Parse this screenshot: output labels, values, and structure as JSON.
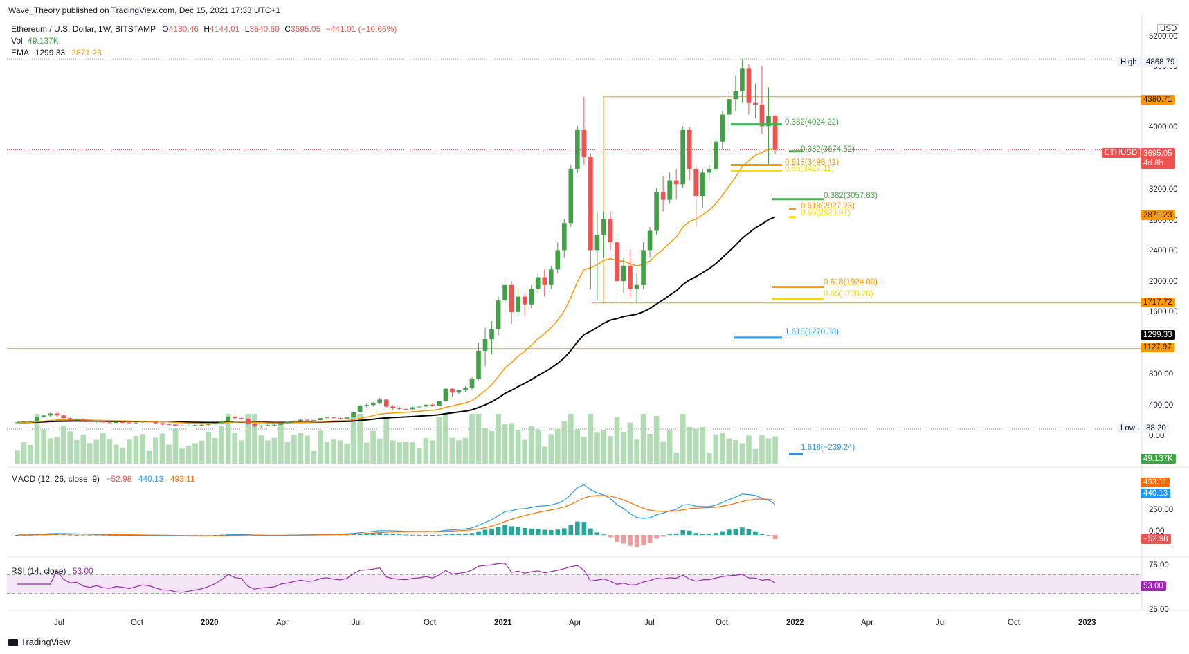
{
  "header": {
    "publisher_text": "Wave_Theory published on TradingView.com, Dec 15, 2021 17:33 UTC+1"
  },
  "legend": {
    "symbol": "Ethereum / U.S. Dollar, 1W, BITSTAMP",
    "o_label": "O",
    "o_value": "4130.46",
    "h_label": "H",
    "h_value": "4144.01",
    "l_label": "L",
    "l_value": "3640.60",
    "c_label": "C",
    "c_value": "3695.05",
    "change": "−441.01 (−10.66%)",
    "vol_label": "Vol",
    "vol_value": "49.137K",
    "ema_label": "EMA",
    "ema1_value": "1299.33",
    "ema2_value": "2871.23",
    "macd_label": "MACD (12, 26, close, 9)",
    "macd_hist": "−52.98",
    "macd_line": "440.13",
    "macd_signal": "493.11",
    "rsi_label": "RSI (14, close)",
    "rsi_value": "53.00"
  },
  "price_axis": {
    "currency": "USD",
    "ticks": [
      "5200.00",
      "4800.00",
      "4000.00",
      "3200.00",
      "2800.00",
      "2400.00",
      "2000.00",
      "1600.00",
      "800.00",
      "400.00",
      "0.00"
    ],
    "high_label": "High",
    "high_value": "4868.79",
    "low_label": "Low",
    "low_value": "88.20",
    "badge_4380": "4380.71",
    "eth_symbol": "ETHUSD",
    "eth_price": "3695.05",
    "eth_countdown": "4d 8h",
    "badge_2871": "2871.23",
    "badge_1717": "1717.72",
    "badge_1299": "1299.33",
    "badge_1127": "1127.97",
    "badge_vol": "49.137K"
  },
  "macd_axis": {
    "ticks": [
      "250.00",
      "0.00"
    ],
    "badge_signal": "493.11",
    "badge_macd": "440.13",
    "badge_hist": "−52.98"
  },
  "rsi_axis": {
    "ticks": [
      "75.00",
      "25.00"
    ],
    "badge_rsi": "53.00"
  },
  "time_axis": {
    "labels": [
      "Jul",
      "Oct",
      "2020",
      "Apr",
      "Jul",
      "Oct",
      "2021",
      "Apr",
      "Jul",
      "Oct",
      "2022",
      "Apr",
      "Jul",
      "Oct",
      "2023"
    ]
  },
  "fib_labels": {
    "f1": "0.382(4024.22)",
    "f2": "0.382(3674.52)",
    "f3": "0.618(3498.41)",
    "f4": "0.65(3427.11)",
    "f5": "0.382(3057.83)",
    "f6": "0.618(2927.23)",
    "f7": "0.65(2825.91)",
    "f8": "0.618(1924.00)",
    "f9": "0.65(1770.26)",
    "f10": "1.618(1270.38)",
    "f11": "1.618(−239.24)"
  },
  "footer": {
    "logo_text": "TradingView"
  },
  "colors": {
    "up": "#26a69a",
    "candle_up": "#43a047",
    "candle_down": "#ef5350",
    "ema_short": "#000000",
    "ema_long": "#ff9800",
    "macd_line": "#2196f3",
    "macd_signal": "#ff6d00",
    "rsi_line": "#9c27b0",
    "rsi_fill": "#f3e5f5",
    "fib_green": "#4caf50",
    "fib_orange": "#ff9800",
    "fib_yellow": "#f5d800",
    "fib_blue": "#2196f3"
  },
  "chart_data": {
    "type": "candlestick",
    "symbol": "ETHUSD",
    "interval": "1W",
    "price_range": [
      0,
      5200
    ],
    "x_range": [
      "2019-04",
      "2023-01"
    ],
    "candles": [
      {
        "o": 170,
        "h": 180,
        "l": 155,
        "c": 175
      },
      {
        "o": 175,
        "h": 190,
        "l": 165,
        "c": 185
      },
      {
        "o": 185,
        "h": 200,
        "l": 175,
        "c": 190
      },
      {
        "o": 190,
        "h": 250,
        "l": 180,
        "c": 245
      },
      {
        "o": 245,
        "h": 280,
        "l": 230,
        "c": 265
      },
      {
        "o": 265,
        "h": 300,
        "l": 250,
        "c": 290
      },
      {
        "o": 290,
        "h": 315,
        "l": 245,
        "c": 265
      },
      {
        "o": 265,
        "h": 275,
        "l": 220,
        "c": 230
      },
      {
        "o": 230,
        "h": 240,
        "l": 200,
        "c": 210
      },
      {
        "o": 210,
        "h": 225,
        "l": 200,
        "c": 215
      },
      {
        "o": 215,
        "h": 225,
        "l": 185,
        "c": 190
      },
      {
        "o": 190,
        "h": 200,
        "l": 175,
        "c": 180
      },
      {
        "o": 180,
        "h": 195,
        "l": 170,
        "c": 190
      },
      {
        "o": 190,
        "h": 200,
        "l": 170,
        "c": 175
      },
      {
        "o": 175,
        "h": 185,
        "l": 165,
        "c": 170
      },
      {
        "o": 170,
        "h": 185,
        "l": 160,
        "c": 180
      },
      {
        "o": 180,
        "h": 190,
        "l": 165,
        "c": 175
      },
      {
        "o": 175,
        "h": 185,
        "l": 160,
        "c": 165
      },
      {
        "o": 165,
        "h": 180,
        "l": 160,
        "c": 175
      },
      {
        "o": 175,
        "h": 190,
        "l": 170,
        "c": 185
      },
      {
        "o": 185,
        "h": 195,
        "l": 170,
        "c": 180
      },
      {
        "o": 180,
        "h": 185,
        "l": 160,
        "c": 165
      },
      {
        "o": 165,
        "h": 170,
        "l": 140,
        "c": 150
      },
      {
        "o": 150,
        "h": 160,
        "l": 140,
        "c": 148
      },
      {
        "o": 148,
        "h": 155,
        "l": 130,
        "c": 135
      },
      {
        "o": 135,
        "h": 145,
        "l": 125,
        "c": 130
      },
      {
        "o": 130,
        "h": 140,
        "l": 125,
        "c": 135
      },
      {
        "o": 135,
        "h": 145,
        "l": 125,
        "c": 140
      },
      {
        "o": 140,
        "h": 150,
        "l": 130,
        "c": 145
      },
      {
        "o": 145,
        "h": 160,
        "l": 135,
        "c": 155
      },
      {
        "o": 155,
        "h": 175,
        "l": 150,
        "c": 170
      },
      {
        "o": 170,
        "h": 200,
        "l": 165,
        "c": 195
      },
      {
        "o": 195,
        "h": 260,
        "l": 190,
        "c": 250
      },
      {
        "o": 250,
        "h": 280,
        "l": 220,
        "c": 230
      },
      {
        "o": 230,
        "h": 240,
        "l": 210,
        "c": 225
      },
      {
        "o": 225,
        "h": 230,
        "l": 140,
        "c": 160
      },
      {
        "o": 160,
        "h": 170,
        "l": 110,
        "c": 125
      },
      {
        "o": 125,
        "h": 140,
        "l": 100,
        "c": 135
      },
      {
        "o": 135,
        "h": 150,
        "l": 125,
        "c": 140
      },
      {
        "o": 140,
        "h": 150,
        "l": 130,
        "c": 145
      },
      {
        "o": 145,
        "h": 175,
        "l": 140,
        "c": 170
      },
      {
        "o": 170,
        "h": 185,
        "l": 160,
        "c": 180
      },
      {
        "o": 180,
        "h": 200,
        "l": 175,
        "c": 195
      },
      {
        "o": 195,
        "h": 215,
        "l": 185,
        "c": 210
      },
      {
        "o": 210,
        "h": 215,
        "l": 195,
        "c": 200
      },
      {
        "o": 200,
        "h": 210,
        "l": 190,
        "c": 205
      },
      {
        "o": 205,
        "h": 235,
        "l": 200,
        "c": 230
      },
      {
        "o": 230,
        "h": 245,
        "l": 220,
        "c": 240
      },
      {
        "o": 240,
        "h": 250,
        "l": 225,
        "c": 230
      },
      {
        "o": 230,
        "h": 240,
        "l": 220,
        "c": 225
      },
      {
        "o": 225,
        "h": 245,
        "l": 220,
        "c": 240
      },
      {
        "o": 240,
        "h": 310,
        "l": 235,
        "c": 305
      },
      {
        "o": 305,
        "h": 400,
        "l": 300,
        "c": 390
      },
      {
        "o": 390,
        "h": 420,
        "l": 370,
        "c": 400
      },
      {
        "o": 400,
        "h": 440,
        "l": 380,
        "c": 430
      },
      {
        "o": 430,
        "h": 490,
        "l": 410,
        "c": 470
      },
      {
        "o": 470,
        "h": 480,
        "l": 370,
        "c": 380
      },
      {
        "o": 380,
        "h": 400,
        "l": 330,
        "c": 360
      },
      {
        "o": 360,
        "h": 380,
        "l": 340,
        "c": 350
      },
      {
        "o": 350,
        "h": 370,
        "l": 330,
        "c": 345
      },
      {
        "o": 345,
        "h": 380,
        "l": 340,
        "c": 370
      },
      {
        "o": 370,
        "h": 390,
        "l": 360,
        "c": 380
      },
      {
        "o": 380,
        "h": 410,
        "l": 370,
        "c": 405
      },
      {
        "o": 405,
        "h": 420,
        "l": 380,
        "c": 390
      },
      {
        "o": 390,
        "h": 460,
        "l": 385,
        "c": 450
      },
      {
        "o": 450,
        "h": 620,
        "l": 440,
        "c": 610
      },
      {
        "o": 610,
        "h": 620,
        "l": 510,
        "c": 560
      },
      {
        "o": 560,
        "h": 600,
        "l": 540,
        "c": 590
      },
      {
        "o": 590,
        "h": 640,
        "l": 570,
        "c": 620
      },
      {
        "o": 620,
        "h": 760,
        "l": 600,
        "c": 740
      },
      {
        "o": 740,
        "h": 1200,
        "l": 720,
        "c": 1100
      },
      {
        "o": 1100,
        "h": 1400,
        "l": 900,
        "c": 1250
      },
      {
        "o": 1250,
        "h": 1480,
        "l": 1050,
        "c": 1380
      },
      {
        "o": 1380,
        "h": 1800,
        "l": 1300,
        "c": 1750
      },
      {
        "o": 1750,
        "h": 2050,
        "l": 1600,
        "c": 1950
      },
      {
        "o": 1950,
        "h": 2000,
        "l": 1450,
        "c": 1600
      },
      {
        "o": 1600,
        "h": 1900,
        "l": 1550,
        "c": 1800
      },
      {
        "o": 1800,
        "h": 1850,
        "l": 1550,
        "c": 1700
      },
      {
        "o": 1700,
        "h": 1950,
        "l": 1650,
        "c": 1900
      },
      {
        "o": 1900,
        "h": 2100,
        "l": 1850,
        "c": 2050
      },
      {
        "o": 2050,
        "h": 2150,
        "l": 1800,
        "c": 1950
      },
      {
        "o": 1950,
        "h": 2200,
        "l": 1900,
        "c": 2150
      },
      {
        "o": 2150,
        "h": 2500,
        "l": 2100,
        "c": 2400
      },
      {
        "o": 2400,
        "h": 2800,
        "l": 2300,
        "c": 2750
      },
      {
        "o": 2750,
        "h": 3500,
        "l": 2700,
        "c": 3450
      },
      {
        "o": 3450,
        "h": 4000,
        "l": 3400,
        "c": 3950
      },
      {
        "o": 3950,
        "h": 4380,
        "l": 3500,
        "c": 3600
      },
      {
        "o": 3600,
        "h": 3650,
        "l": 1900,
        "c": 2400
      },
      {
        "o": 2400,
        "h": 2900,
        "l": 1750,
        "c": 2600
      },
      {
        "o": 2600,
        "h": 2900,
        "l": 2300,
        "c": 2800
      },
      {
        "o": 2800,
        "h": 2900,
        "l": 2400,
        "c": 2500
      },
      {
        "o": 2500,
        "h": 2600,
        "l": 1750,
        "c": 2000
      },
      {
        "o": 2000,
        "h": 2300,
        "l": 1850,
        "c": 2200
      },
      {
        "o": 2200,
        "h": 2400,
        "l": 1800,
        "c": 1900
      },
      {
        "o": 1900,
        "h": 2100,
        "l": 1720,
        "c": 1950
      },
      {
        "o": 1950,
        "h": 2500,
        "l": 1900,
        "c": 2400
      },
      {
        "o": 2400,
        "h": 2700,
        "l": 2300,
        "c": 2650
      },
      {
        "o": 2650,
        "h": 3200,
        "l": 2600,
        "c": 3150
      },
      {
        "o": 3150,
        "h": 3350,
        "l": 2900,
        "c": 3050
      },
      {
        "o": 3050,
        "h": 3400,
        "l": 3000,
        "c": 3300
      },
      {
        "o": 3300,
        "h": 3450,
        "l": 3050,
        "c": 3250
      },
      {
        "o": 3250,
        "h": 4000,
        "l": 3200,
        "c": 3950
      },
      {
        "o": 3950,
        "h": 3990,
        "l": 3300,
        "c": 3450
      },
      {
        "o": 3450,
        "h": 3500,
        "l": 2700,
        "c": 3100
      },
      {
        "o": 3100,
        "h": 3450,
        "l": 2950,
        "c": 3400
      },
      {
        "o": 3400,
        "h": 3500,
        "l": 3300,
        "c": 3450
      },
      {
        "o": 3450,
        "h": 3850,
        "l": 3400,
        "c": 3800
      },
      {
        "o": 3800,
        "h": 4200,
        "l": 3700,
        "c": 4150
      },
      {
        "o": 4150,
        "h": 4450,
        "l": 3900,
        "c": 4350
      },
      {
        "o": 4350,
        "h": 4650,
        "l": 4200,
        "c": 4450
      },
      {
        "o": 4450,
        "h": 4868,
        "l": 4300,
        "c": 4750
      },
      {
        "o": 4750,
        "h": 4800,
        "l": 4150,
        "c": 4300
      },
      {
        "o": 4300,
        "h": 4550,
        "l": 4100,
        "c": 4280
      },
      {
        "o": 4280,
        "h": 4780,
        "l": 3900,
        "c": 4000
      },
      {
        "o": 4000,
        "h": 4500,
        "l": 3500,
        "c": 4130
      },
      {
        "o": 4130,
        "h": 4144,
        "l": 3640,
        "c": 3695
      }
    ],
    "ema_short_period_value": 1299.33,
    "ema_long_period_value": 2871.23,
    "horizontal_levels": [
      4380.71,
      1717.72,
      1127.97,
      4868.79,
      88.2
    ],
    "fib_levels": [
      {
        "label": "0.382",
        "value": 4024.22
      },
      {
        "label": "0.382",
        "value": 3674.52
      },
      {
        "label": "0.618",
        "value": 3498.41
      },
      {
        "label": "0.65",
        "value": 3427.11
      },
      {
        "label": "0.382",
        "value": 3057.83
      },
      {
        "label": "0.618",
        "value": 2927.23
      },
      {
        "label": "0.65",
        "value": 2825.91
      },
      {
        "label": "0.618",
        "value": 1924.0
      },
      {
        "label": "0.65",
        "value": 1770.26
      },
      {
        "label": "1.618",
        "value": 1270.38
      },
      {
        "label": "1.618",
        "value": -239.24
      }
    ],
    "macd": {
      "macd": 440.13,
      "signal": 493.11,
      "histogram": -52.98
    },
    "rsi": {
      "value": 53.0,
      "upper": 70,
      "lower": 30
    }
  }
}
